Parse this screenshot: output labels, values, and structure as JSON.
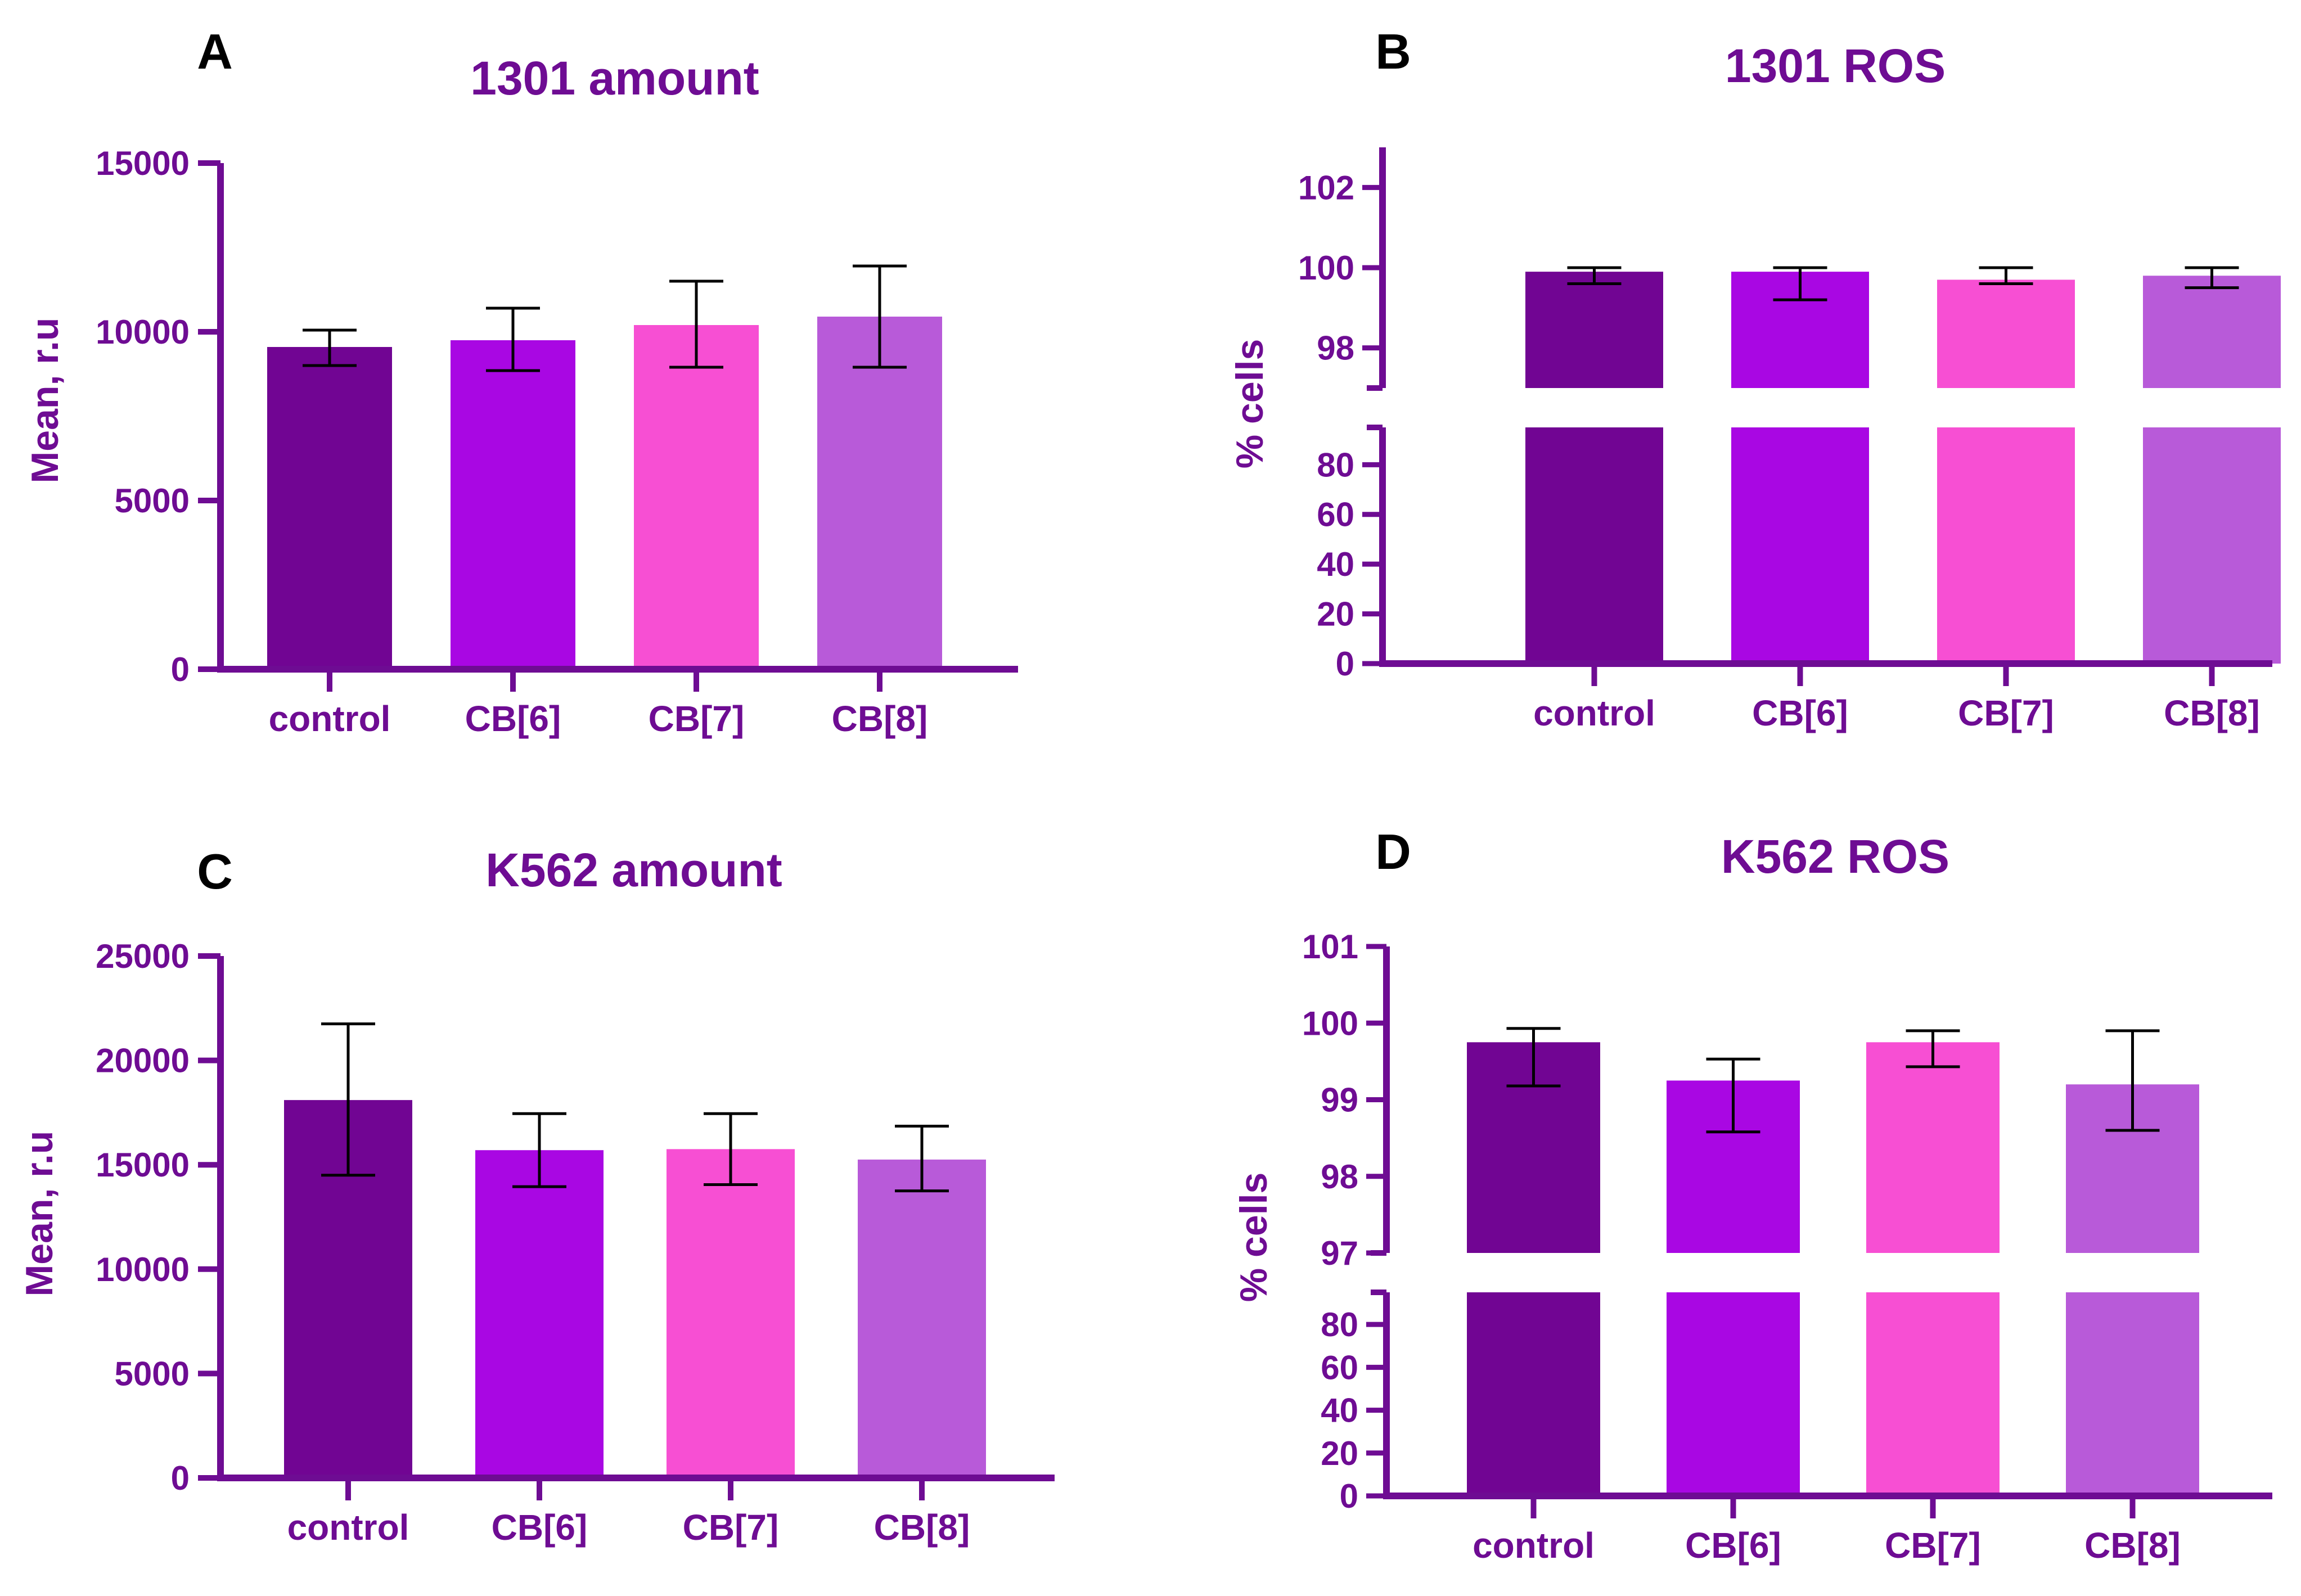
{
  "chart_data": [
    {
      "panel": "A",
      "type": "bar",
      "title": "1301 amount",
      "ylabel": "Mean, r.u",
      "xlabel": "",
      "categories": [
        "control",
        "CB[6]",
        "CB[7]",
        "CB[8]"
      ],
      "values": [
        9550,
        9750,
        10200,
        10450
      ],
      "error_low": [
        9000,
        8850,
        8950,
        8950
      ],
      "error_high": [
        10050,
        10700,
        11500,
        11950
      ],
      "ylim": [
        0,
        15000
      ],
      "yticks": [
        "0",
        "5000",
        "10000",
        "15000"
      ],
      "ytick_values": [
        0,
        5000,
        10000,
        15000
      ],
      "colors": [
        "#710593",
        "#A907E3",
        "#F74FD3",
        "#B85AD9"
      ],
      "broken_axis": false,
      "grid": false
    },
    {
      "panel": "B",
      "type": "bar",
      "title": "1301 ROS",
      "ylabel": "% cells",
      "xlabel": "",
      "categories": [
        "control",
        "CB[6]",
        "CB[7]",
        "CB[8]"
      ],
      "values": [
        99.9,
        99.9,
        99.7,
        99.8
      ],
      "error_low": [
        99.6,
        99.2,
        99.6,
        99.5
      ],
      "error_high": [
        100.0,
        100.0,
        100.0,
        100.0
      ],
      "broken_axis": true,
      "lower_range": [
        0,
        95
      ],
      "upper_range": [
        97,
        103
      ],
      "lower_ticks": [
        "0",
        "20",
        "40",
        "60",
        "80"
      ],
      "lower_tick_values": [
        0,
        20,
        40,
        60,
        80
      ],
      "upper_ticks": [
        "98",
        "100",
        "102"
      ],
      "upper_tick_values": [
        98,
        100,
        102
      ],
      "colors": [
        "#710593",
        "#A907E3",
        "#F74FD3",
        "#B85AD9"
      ],
      "grid": false
    },
    {
      "panel": "C",
      "type": "bar",
      "title": "K562 amount",
      "ylabel": "Mean, r.u",
      "xlabel": "",
      "categories": [
        "control",
        "CB[6]",
        "CB[7]",
        "CB[8]"
      ],
      "values": [
        18100,
        15700,
        15750,
        15250
      ],
      "error_low": [
        14500,
        13950,
        14050,
        13750
      ],
      "error_high": [
        21750,
        17450,
        17450,
        16850
      ],
      "ylim": [
        0,
        25000
      ],
      "yticks": [
        "0",
        "5000",
        "10000",
        "15000",
        "20000",
        "25000"
      ],
      "ytick_values": [
        0,
        5000,
        10000,
        15000,
        20000,
        25000
      ],
      "colors": [
        "#710593",
        "#A907E3",
        "#F74FD3",
        "#B85AD9"
      ],
      "broken_axis": false,
      "grid": false
    },
    {
      "panel": "D",
      "type": "bar",
      "title": "K562 ROS",
      "ylabel": "% cells",
      "xlabel": "",
      "categories": [
        "control",
        "CB[6]",
        "CB[7]",
        "CB[8]"
      ],
      "values": [
        99.75,
        99.25,
        99.75,
        99.2
      ],
      "error_low": [
        99.18,
        98.58,
        99.43,
        98.6
      ],
      "error_high": [
        99.93,
        99.53,
        99.9,
        99.9
      ],
      "broken_axis": true,
      "lower_range": [
        0,
        95
      ],
      "upper_range": [
        97,
        101
      ],
      "lower_ticks": [
        "0",
        "20",
        "40",
        "60",
        "80"
      ],
      "lower_tick_values": [
        0,
        20,
        40,
        60,
        80
      ],
      "upper_ticks": [
        "97",
        "98",
        "99",
        "100",
        "101"
      ],
      "upper_tick_values": [
        97,
        98,
        99,
        100,
        101
      ],
      "colors": [
        "#710593",
        "#A907E3",
        "#F74FD3",
        "#B85AD9"
      ],
      "grid": false
    }
  ]
}
